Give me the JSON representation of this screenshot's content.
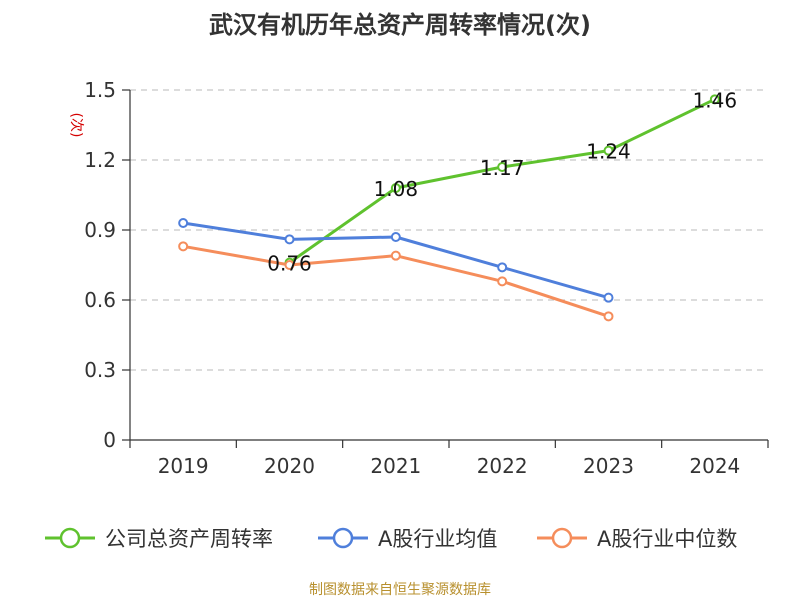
{
  "chart_data": {
    "type": "line",
    "title": "武汉有机历年总资产周转率情况(次)",
    "ylabel": "(次)",
    "categories": [
      "2019",
      "2020",
      "2021",
      "2022",
      "2023",
      "2024"
    ],
    "ylim": [
      0,
      1.5
    ],
    "yticks": [
      "0",
      "0.3",
      "0.6",
      "0.9",
      "1.2",
      "1.5"
    ],
    "ytick_values": [
      0,
      0.3,
      0.6,
      0.9,
      1.2,
      1.5
    ],
    "grid": true,
    "legend_position": "bottom",
    "series": [
      {
        "name": "公司总资产周转率",
        "color": "#5fc22e",
        "values": [
          null,
          0.76,
          1.08,
          1.17,
          1.24,
          1.46
        ],
        "labels": [
          "",
          "0.76",
          "1.08",
          "1.17",
          "1.24",
          "1.46"
        ]
      },
      {
        "name": "A股行业均值",
        "color": "#4f7fdb",
        "values": [
          0.93,
          0.86,
          0.87,
          0.74,
          0.61,
          null
        ]
      },
      {
        "name": "A股行业中位数",
        "color": "#f58d5b",
        "values": [
          0.83,
          0.75,
          0.79,
          0.68,
          0.53,
          null
        ]
      }
    ],
    "source": "制图数据来自恒生聚源数据库"
  }
}
